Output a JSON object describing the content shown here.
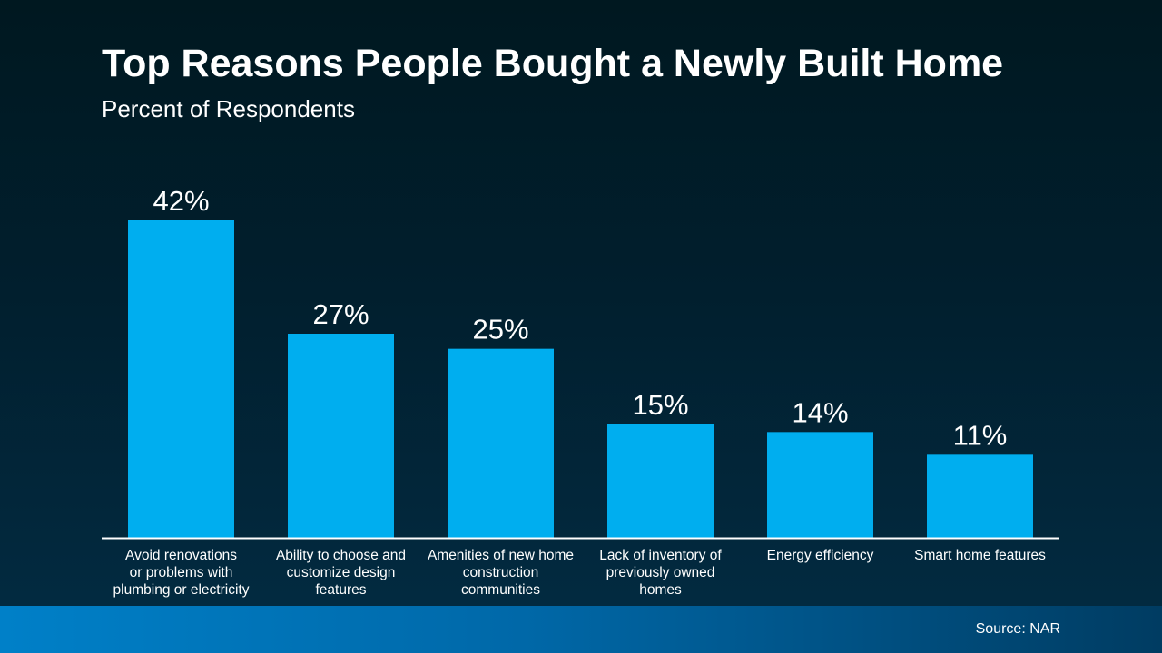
{
  "chart_data": {
    "type": "bar",
    "title": "Top Reasons People Bought a Newly Built Home",
    "subtitle": "Percent of Respondents",
    "categories": [
      [
        "Avoid renovations",
        "or problems with",
        "plumbing or electricity"
      ],
      [
        "Ability to choose and",
        "customize design",
        "features"
      ],
      [
        "Amenities of new home",
        "construction",
        "communities"
      ],
      [
        "Lack of inventory of",
        "previously owned",
        "homes"
      ],
      [
        "Energy efficiency"
      ],
      [
        "Smart home features"
      ]
    ],
    "values": [
      42,
      27,
      25,
      15,
      14,
      11
    ],
    "data_labels": [
      "42%",
      "27%",
      "25%",
      "15%",
      "14%",
      "11%"
    ],
    "ylim": [
      0,
      42
    ],
    "grid": false,
    "bar_color": "#00aeef",
    "source": "Source: NAR"
  }
}
